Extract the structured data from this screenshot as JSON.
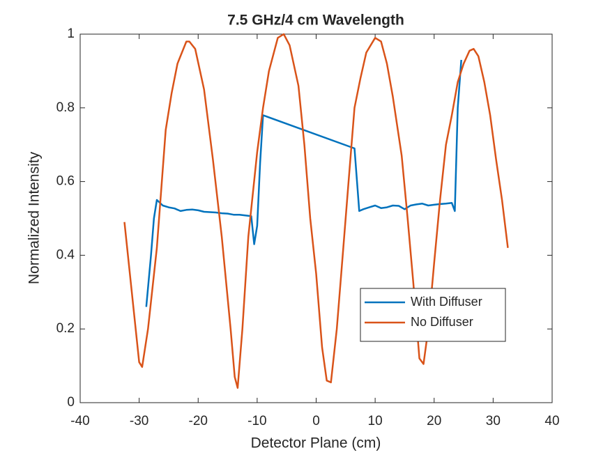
{
  "chart_data": {
    "type": "line",
    "title": "7.5 GHz/4 cm Wavelength",
    "x_label": "Detector Plane (cm)",
    "y_label": "Normalized Intensity",
    "xlim": [
      -40,
      40
    ],
    "xticks": [
      -40,
      -30,
      -20,
      -10,
      0,
      10,
      20,
      30,
      40
    ],
    "ylim": [
      0,
      1
    ],
    "yticks": [
      0,
      0.2,
      0.4,
      0.6,
      0.8,
      1
    ],
    "legend": "lower right",
    "series": [
      {
        "name": "With Diffuser",
        "color": "#0072BD",
        "x": [
          -28.8,
          -28,
          -27.5,
          -27,
          -26,
          -25,
          -24,
          -23,
          -22,
          -21,
          -20,
          -19,
          -18,
          -17,
          -16,
          -15,
          -14,
          -13,
          -12,
          -11,
          -10.5,
          -10,
          -9.5,
          -9,
          6.5,
          7.3,
          8,
          9,
          10,
          11,
          12,
          13,
          14,
          15,
          16,
          17,
          18,
          19,
          20,
          21,
          22,
          23,
          23.5,
          24,
          24.6
        ],
        "values": [
          0.26,
          0.4,
          0.5,
          0.55,
          0.535,
          0.53,
          0.527,
          0.52,
          0.523,
          0.524,
          0.522,
          0.518,
          0.517,
          0.516,
          0.514,
          0.513,
          0.51,
          0.51,
          0.508,
          0.506,
          0.43,
          0.48,
          0.65,
          0.78,
          0.69,
          0.52,
          0.525,
          0.53,
          0.535,
          0.528,
          0.53,
          0.535,
          0.534,
          0.525,
          0.535,
          0.538,
          0.54,
          0.535,
          0.537,
          0.539,
          0.54,
          0.542,
          0.52,
          0.8,
          0.93
        ]
      },
      {
        "name": "No Diffuser",
        "color": "#D95319",
        "x": [
          -32.5,
          -30,
          -29.5,
          -28.5,
          -27,
          -25.5,
          -24.5,
          -23.5,
          -22,
          -21.5,
          -20.5,
          -19,
          -17.5,
          -16,
          -14.5,
          -13.8,
          -13.3,
          -12.5,
          -11.5,
          -10,
          -9,
          -8,
          -6.5,
          -5.5,
          -4.5,
          -3,
          -2,
          -1,
          0,
          1,
          1.8,
          2.5,
          3.5,
          4.5,
          5.5,
          6.5,
          7.5,
          8.5,
          10,
          11,
          12,
          13,
          14.5,
          15.5,
          16.5,
          17.5,
          18.2,
          19,
          20,
          21,
          22,
          23,
          24,
          25,
          26,
          26.7,
          27.5,
          28.5,
          29.5,
          30.5,
          31.5,
          32.5
        ],
        "values": [
          0.49,
          0.11,
          0.097,
          0.2,
          0.42,
          0.74,
          0.84,
          0.92,
          0.98,
          0.98,
          0.96,
          0.85,
          0.66,
          0.45,
          0.2,
          0.07,
          0.04,
          0.2,
          0.45,
          0.68,
          0.8,
          0.9,
          0.99,
          1.0,
          0.97,
          0.86,
          0.7,
          0.5,
          0.35,
          0.15,
          0.06,
          0.055,
          0.2,
          0.4,
          0.6,
          0.8,
          0.88,
          0.95,
          0.99,
          0.98,
          0.92,
          0.83,
          0.67,
          0.5,
          0.32,
          0.12,
          0.105,
          0.2,
          0.38,
          0.55,
          0.7,
          0.78,
          0.87,
          0.92,
          0.955,
          0.96,
          0.94,
          0.87,
          0.78,
          0.66,
          0.55,
          0.42
        ]
      }
    ]
  }
}
